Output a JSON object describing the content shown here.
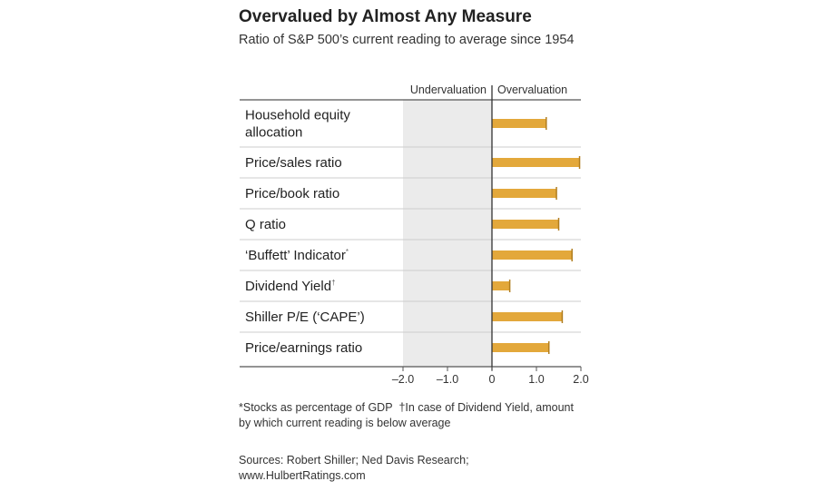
{
  "title": "Overvalued by Almost Any Measure",
  "subtitle": "Ratio of S&P 500’s current reading to average since 1954",
  "footnote": {
    "note_star": "*Stocks as percentage of GDP",
    "note_dagger": "†In case of Dividend Yield, amount by which current reading is below average"
  },
  "sources": "Sources: Robert Shiller; Ned Davis Research; www.HulbertRatings.com",
  "colors": {
    "bar": "#e3a83b",
    "shade": "#ebebeb",
    "axis": "#333333",
    "grid": "#cccccc",
    "text": "#222222"
  },
  "chart_data": {
    "type": "bar",
    "orientation": "horizontal",
    "region_labels": {
      "left": "Undervaluation",
      "right": "Overvaluation"
    },
    "categories": [
      {
        "label": "Household equity allocation",
        "lines": [
          "Household equity",
          "allocation"
        ],
        "mark": ""
      },
      {
        "label": "Price/sales ratio",
        "lines": [
          "Price/sales ratio"
        ],
        "mark": ""
      },
      {
        "label": "Price/book ratio",
        "lines": [
          "Price/book ratio"
        ],
        "mark": ""
      },
      {
        "label": "Q ratio",
        "lines": [
          "Q ratio"
        ],
        "mark": ""
      },
      {
        "label": "‘Buffett’ Indicator",
        "lines": [
          "‘Buffett’ Indicator"
        ],
        "mark": "*"
      },
      {
        "label": "Dividend Yield",
        "lines": [
          "Dividend Yield"
        ],
        "mark": "†"
      },
      {
        "label": "Shiller P/E (‘CAPE’)",
        "lines": [
          "Shiller P/E (‘CAPE’)"
        ],
        "mark": ""
      },
      {
        "label": "Price/earnings ratio",
        "lines": [
          "Price/earnings ratio"
        ],
        "mark": ""
      }
    ],
    "values": [
      1.22,
      1.97,
      1.45,
      1.5,
      1.8,
      0.4,
      1.58,
      1.28
    ],
    "xlim": [
      -2.0,
      2.0
    ],
    "xticks": [
      -2.0,
      -1.0,
      0,
      1.0,
      2.0
    ],
    "xtick_labels": [
      "–2.0",
      "–1.0",
      "0",
      "1.0",
      "2.0"
    ],
    "title": "Overvalued by Almost Any Measure",
    "xlabel": "",
    "ylabel": "",
    "legend": "none",
    "grid": false
  }
}
